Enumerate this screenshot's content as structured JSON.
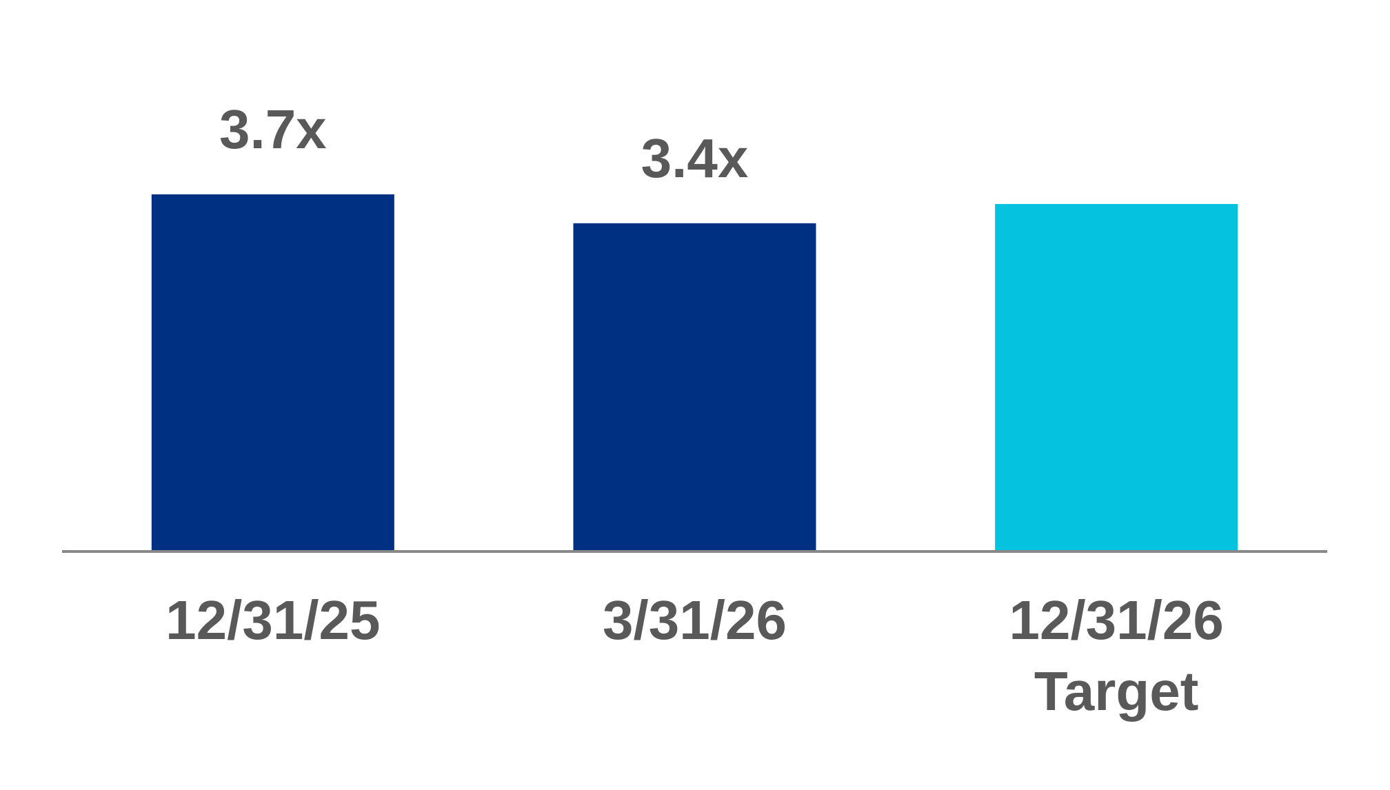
{
  "chart_data": {
    "type": "bar",
    "categories": [
      "12/31/25",
      "3/31/26",
      "12/31/26\nTarget"
    ],
    "values": [
      3.7,
      3.4,
      3.6
    ],
    "value_labels": [
      "3.7x",
      "3.4x",
      null
    ],
    "colors": [
      "#003082",
      "#003082",
      "#05c3de"
    ],
    "ylim": [
      0,
      4
    ]
  }
}
